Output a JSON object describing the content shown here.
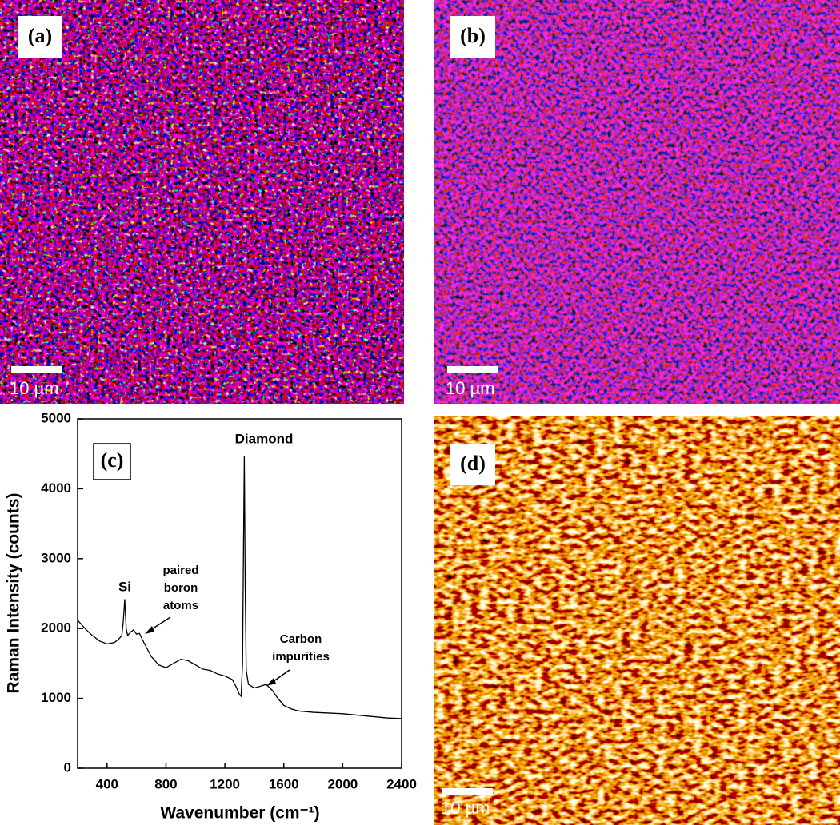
{
  "panels": [
    {
      "label": "(a)",
      "scale_bar": "10 µm"
    },
    {
      "label": "(b)",
      "scale_bar": "10 µm"
    },
    {
      "label": "(d)",
      "scale_bar": "10 µm"
    }
  ],
  "chart_data": {
    "type": "line",
    "panel_label": "(c)",
    "x_label": "Wavenumber (cm⁻¹)",
    "y_label": "Raman Intensity (counts)",
    "x": [
      200,
      250,
      300,
      350,
      400,
      450,
      480,
      500,
      510,
      520,
      530,
      540,
      560,
      580,
      600,
      620,
      650,
      700,
      750,
      800,
      850,
      900,
      950,
      1000,
      1050,
      1100,
      1150,
      1200,
      1250,
      1280,
      1300,
      1310,
      1320,
      1325,
      1332,
      1338,
      1345,
      1360,
      1400,
      1450,
      1480,
      1520,
      1560,
      1600,
      1650,
      1700,
      1800,
      1900,
      2000,
      2100,
      2200,
      2300,
      2400
    ],
    "values": [
      2120,
      2000,
      1900,
      1820,
      1780,
      1800,
      1850,
      1900,
      2100,
      2420,
      2000,
      1900,
      1950,
      1980,
      1920,
      1930,
      1800,
      1600,
      1480,
      1440,
      1500,
      1560,
      1540,
      1480,
      1420,
      1400,
      1350,
      1320,
      1270,
      1150,
      1050,
      1030,
      1500,
      2800,
      4470,
      2600,
      1400,
      1200,
      1150,
      1180,
      1200,
      1120,
      1000,
      900,
      850,
      820,
      800,
      790,
      780,
      760,
      740,
      720,
      710
    ],
    "color": "#000000",
    "xlim": [
      200,
      2400
    ],
    "xticks": [
      400,
      800,
      1200,
      1600,
      2000,
      2400
    ],
    "ylim": [
      0,
      5000
    ],
    "yticks": [
      0,
      1000,
      2000,
      3000,
      4000,
      5000
    ],
    "annotations": [
      [
        "Diamond"
      ],
      [
        "Si"
      ],
      [
        "paired",
        "boron",
        "atoms"
      ],
      [
        "Carbon",
        "impurities"
      ]
    ]
  }
}
